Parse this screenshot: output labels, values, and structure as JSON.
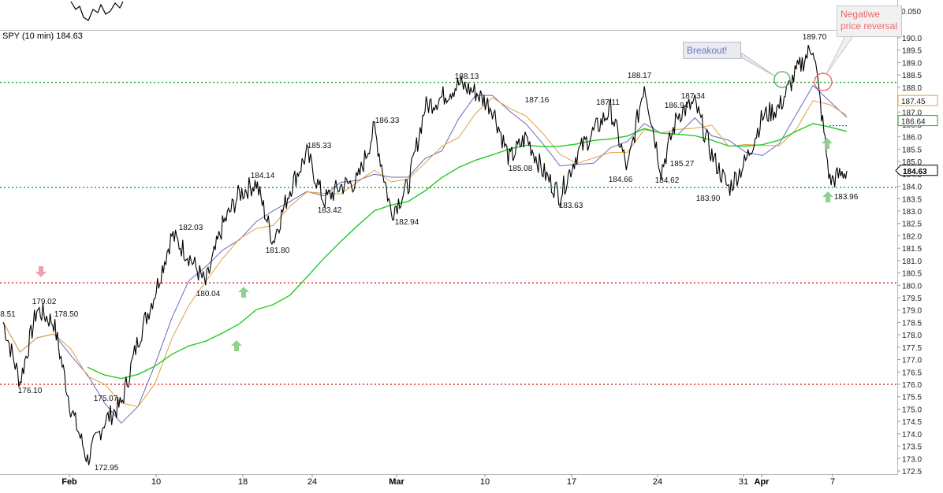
{
  "chart_data": {
    "type": "line",
    "title": "SPY (10 min) 184.63",
    "xlabel": "",
    "ylabel": "",
    "ylim": [
      172.5,
      190.0
    ],
    "y_ticks": [
      172.5,
      173.0,
      173.5,
      174.0,
      174.5,
      175.0,
      175.5,
      176.0,
      176.5,
      177.0,
      177.5,
      178.0,
      178.5,
      179.0,
      179.5,
      180.0,
      180.5,
      181.0,
      181.5,
      182.0,
      182.5,
      183.0,
      183.5,
      184.0,
      184.5,
      185.0,
      185.5,
      186.0,
      186.5,
      187.0,
      187.5,
      188.0,
      188.5,
      189.0,
      189.5,
      190.0
    ],
    "x_ticks": [
      "Feb",
      "10",
      "18",
      "24",
      "Mar",
      "10",
      "17",
      "24",
      "31",
      "Apr",
      "7"
    ],
    "upper_panel_tick": "0.050",
    "last_price_label": "184.63",
    "ma_labels": [
      "187.45",
      "186.64"
    ],
    "horizontal_levels": [
      {
        "value": 188.2,
        "color": "#22aa22"
      },
      {
        "value": 183.95,
        "color": "#22aa22"
      },
      {
        "value": 180.1,
        "color": "#e03030"
      },
      {
        "value": 176.0,
        "color": "#e03030"
      }
    ],
    "price": {
      "x": [
        "Jan27",
        "Jan28",
        "Jan29",
        "Jan30",
        "Jan31",
        "Feb3",
        "Feb4",
        "Feb5",
        "Feb6",
        "Feb7",
        "Feb10",
        "Feb11",
        "Feb12",
        "Feb13",
        "Feb14",
        "Feb18",
        "Feb19",
        "Feb20",
        "Feb21",
        "Feb24",
        "Feb25",
        "Feb26",
        "Feb27",
        "Feb28",
        "Mar3",
        "Mar4",
        "Mar5",
        "Mar6",
        "Mar7",
        "Mar10",
        "Mar11",
        "Mar12",
        "Mar13",
        "Mar14",
        "Mar17",
        "Mar18",
        "Mar19",
        "Mar20",
        "Mar21",
        "Mar24",
        "Mar25",
        "Mar26",
        "Mar27",
        "Mar28",
        "Mar31",
        "Apr1",
        "Apr2",
        "Apr3",
        "Apr4",
        "Apr7",
        "Apr8"
      ],
      "close": [
        178.51,
        176.1,
        179.02,
        178.5,
        175.07,
        172.95,
        174.5,
        175.2,
        177.8,
        179.7,
        182.03,
        181.2,
        180.04,
        182.4,
        183.7,
        184.14,
        181.8,
        183.9,
        185.33,
        183.42,
        184.0,
        184.2,
        186.33,
        182.94,
        184.0,
        187.2,
        187.6,
        188.13,
        187.8,
        187.16,
        185.08,
        186.0,
        184.6,
        183.63,
        185.3,
        186.2,
        187.11,
        184.66,
        188.17,
        184.62,
        186.94,
        187.34,
        185.27,
        183.9,
        185.0,
        186.8,
        187.2,
        188.6,
        189.7,
        184.2,
        184.63
      ]
    },
    "annotations": [
      {
        "text": "179.02"
      },
      {
        "text": "178.50"
      },
      {
        "text": "8.51"
      },
      {
        "text": "176.10"
      },
      {
        "text": "175.07"
      },
      {
        "text": "172.95"
      },
      {
        "text": "182.03"
      },
      {
        "text": "180.04"
      },
      {
        "text": "184.14"
      },
      {
        "text": "181.80"
      },
      {
        "text": "185.33"
      },
      {
        "text": "183.42"
      },
      {
        "text": "186.33"
      },
      {
        "text": "182.94"
      },
      {
        "text": "188.13"
      },
      {
        "text": "187.16"
      },
      {
        "text": "185.08"
      },
      {
        "text": "183.63"
      },
      {
        "text": "187.11"
      },
      {
        "text": "184.66"
      },
      {
        "text": "188.17"
      },
      {
        "text": "186.94"
      },
      {
        "text": "184.62"
      },
      {
        "text": "187.34"
      },
      {
        "text": "185.27"
      },
      {
        "text": "183.90"
      },
      {
        "text": "189.70"
      },
      {
        "text": "183.96"
      }
    ],
    "callouts": {
      "breakout": "Breakout!",
      "reversal_line1": "Negatiwe",
      "reversal_line2": "price reversal"
    },
    "grid": false
  }
}
